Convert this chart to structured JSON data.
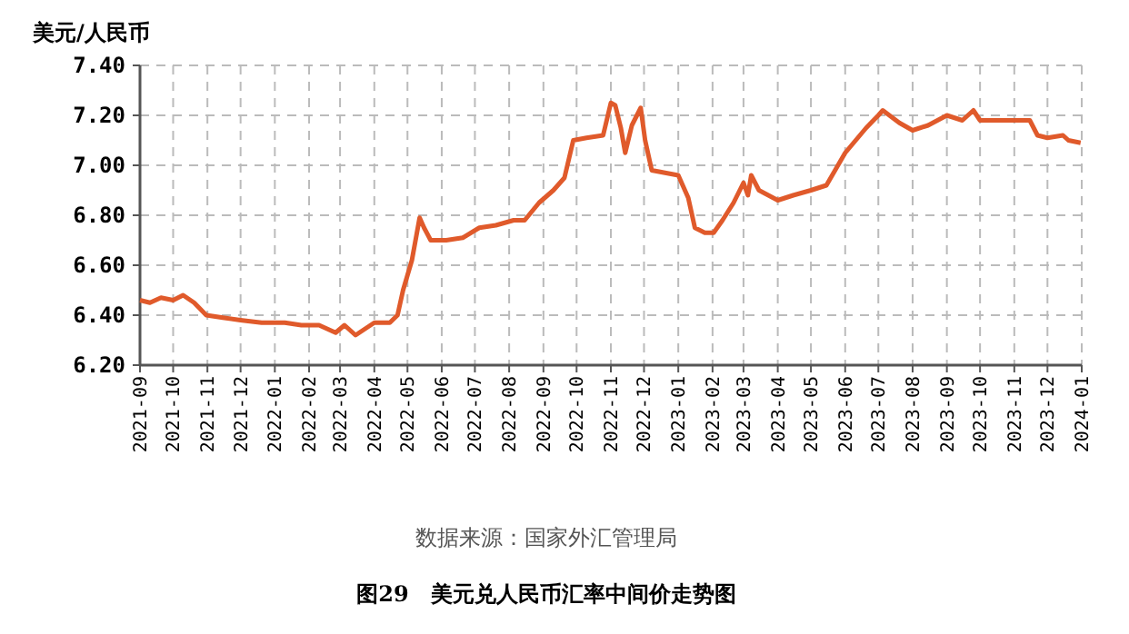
{
  "chart_data": {
    "type": "line",
    "title": "图29　美元兑人民币汇率中间价走势图",
    "ylabel": "美元/人民币",
    "annotations": [
      "数据来源：国家外汇管理局"
    ],
    "x": [
      "2021-09-01",
      "2021-09-10",
      "2021-09-20",
      "2021-10-01",
      "2021-10-10",
      "2021-10-20",
      "2021-10-31",
      "2021-11-15",
      "2021-12-01",
      "2021-12-20",
      "2022-01-10",
      "2022-01-25",
      "2022-02-10",
      "2022-02-25",
      "2022-03-05",
      "2022-03-15",
      "2022-04-01",
      "2022-04-15",
      "2022-04-22",
      "2022-04-27",
      "2022-05-05",
      "2022-05-12",
      "2022-05-16",
      "2022-05-22",
      "2022-06-05",
      "2022-06-20",
      "2022-07-05",
      "2022-07-20",
      "2022-08-05",
      "2022-08-15",
      "2022-08-28",
      "2022-09-10",
      "2022-09-20",
      "2022-09-28",
      "2022-10-10",
      "2022-10-25",
      "2022-11-01",
      "2022-11-05",
      "2022-11-10",
      "2022-11-14",
      "2022-11-20",
      "2022-11-28",
      "2022-12-02",
      "2022-12-08",
      "2022-12-20",
      "2023-01-01",
      "2023-01-10",
      "2023-01-16",
      "2023-01-25",
      "2023-02-02",
      "2023-02-10",
      "2023-02-20",
      "2023-03-01",
      "2023-03-05",
      "2023-03-08",
      "2023-03-15",
      "2023-04-01",
      "2023-04-15",
      "2023-05-01",
      "2023-05-15",
      "2023-06-01",
      "2023-06-20",
      "2023-07-01",
      "2023-07-05",
      "2023-07-20",
      "2023-08-01",
      "2023-08-15",
      "2023-09-01",
      "2023-09-15",
      "2023-09-25",
      "2023-10-01",
      "2023-11-15",
      "2023-11-22",
      "2023-12-01",
      "2023-12-15",
      "2023-12-20",
      "2023-12-31"
    ],
    "series": [
      {
        "color": "#e05a2b",
        "values": [
          6.46,
          6.45,
          6.47,
          6.46,
          6.48,
          6.45,
          6.4,
          6.39,
          6.38,
          6.37,
          6.37,
          6.36,
          6.36,
          6.33,
          6.36,
          6.32,
          6.37,
          6.37,
          6.4,
          6.5,
          6.62,
          6.79,
          6.75,
          6.7,
          6.7,
          6.71,
          6.75,
          6.76,
          6.78,
          6.78,
          6.85,
          6.9,
          6.95,
          7.1,
          7.11,
          7.12,
          7.25,
          7.24,
          7.15,
          7.05,
          7.16,
          7.23,
          7.1,
          6.98,
          6.97,
          6.96,
          6.87,
          6.75,
          6.73,
          6.73,
          6.78,
          6.85,
          6.93,
          6.88,
          6.96,
          6.9,
          6.86,
          6.88,
          6.9,
          6.92,
          7.05,
          7.15,
          7.2,
          7.22,
          7.17,
          7.14,
          7.16,
          7.2,
          7.18,
          7.22,
          7.18,
          7.18,
          7.12,
          7.11,
          7.12,
          7.1,
          7.09
        ]
      }
    ],
    "xlim": [
      "2021-09-01",
      "2024-01-01"
    ],
    "xticks": [
      "2021-09",
      "2021-10",
      "2021-11",
      "2021-12",
      "2022-01",
      "2022-02",
      "2022-03",
      "2022-04",
      "2022-05",
      "2022-06",
      "2022-07",
      "2022-08",
      "2022-09",
      "2022-10",
      "2022-11",
      "2022-12",
      "2023-01",
      "2023-02",
      "2023-03",
      "2023-04",
      "2023-05",
      "2023-06",
      "2023-07",
      "2023-08",
      "2023-09",
      "2023-10",
      "2023-11",
      "2023-12",
      "2024-01"
    ],
    "ylim": [
      6.2,
      7.4
    ],
    "yticks": [
      {
        "value": 6.2,
        "label": "6.20"
      },
      {
        "value": 6.4,
        "label": "6.40"
      },
      {
        "value": 6.6,
        "label": "6.60"
      },
      {
        "value": 6.8,
        "label": "6.80"
      },
      {
        "value": 7.0,
        "label": "7.00"
      },
      {
        "value": 7.2,
        "label": "7.20"
      },
      {
        "value": 7.4,
        "label": "7.40"
      }
    ],
    "grid": true,
    "line_style": "solid"
  }
}
